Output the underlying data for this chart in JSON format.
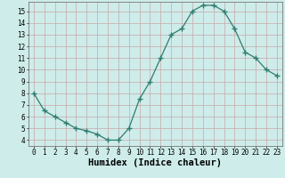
{
  "x": [
    0,
    1,
    2,
    3,
    4,
    5,
    6,
    7,
    8,
    9,
    10,
    11,
    12,
    13,
    14,
    15,
    16,
    17,
    18,
    19,
    20,
    21,
    22,
    23
  ],
  "y": [
    8.0,
    6.5,
    6.0,
    5.5,
    5.0,
    4.8,
    4.5,
    4.0,
    4.0,
    5.0,
    7.5,
    9.0,
    11.0,
    13.0,
    13.5,
    15.0,
    15.5,
    15.5,
    15.0,
    13.5,
    11.5,
    11.0,
    10.0,
    9.5
  ],
  "line_color": "#2e7d6e",
  "marker": "+",
  "xlabel": "Humidex (Indice chaleur)",
  "ylim": [
    3.5,
    15.8
  ],
  "xlim": [
    -0.5,
    23.5
  ],
  "yticks": [
    4,
    5,
    6,
    7,
    8,
    9,
    10,
    11,
    12,
    13,
    14,
    15
  ],
  "xticks": [
    0,
    1,
    2,
    3,
    4,
    5,
    6,
    7,
    8,
    9,
    10,
    11,
    12,
    13,
    14,
    15,
    16,
    17,
    18,
    19,
    20,
    21,
    22,
    23
  ],
  "bg_color": "#ceecea",
  "grid_color": "#c8a8a8",
  "tick_label_fontsize": 5.5,
  "xlabel_fontsize": 7.5
}
